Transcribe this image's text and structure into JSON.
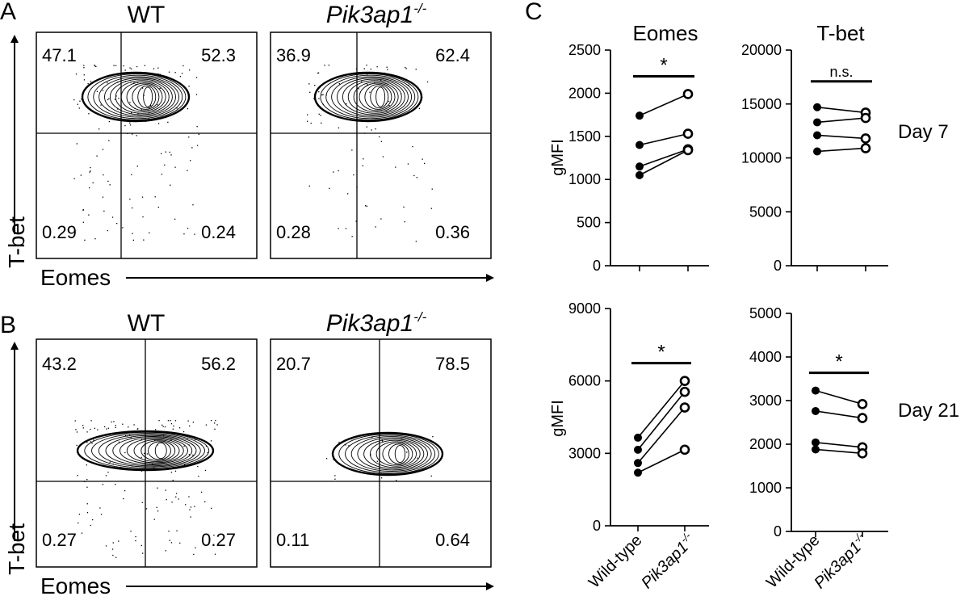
{
  "panel_letters": {
    "a": "A",
    "b": "B",
    "c": "C"
  },
  "flow": {
    "y_axis_label": "T-bet",
    "x_axis_label": "Eomes",
    "rows": [
      {
        "plots": [
          {
            "title": "WT",
            "q_ul": "47.1",
            "q_ur": "52.3",
            "q_ll": "0.29",
            "q_lr": "0.24"
          },
          {
            "title_main": "Pik3ap1",
            "title_sup": "-/-",
            "q_ul": "36.9",
            "q_ur": "62.4",
            "q_ll": "0.28",
            "q_lr": "0.36"
          }
        ]
      },
      {
        "plots": [
          {
            "title": "WT",
            "q_ul": "43.2",
            "q_ur": "56.2",
            "q_ll": "0.27",
            "q_lr": "0.27"
          },
          {
            "title_main": "Pik3ap1",
            "title_sup": "-/-",
            "q_ul": "20.7",
            "q_ur": "78.5",
            "q_ll": "0.11",
            "q_lr": "0.64"
          }
        ]
      }
    ]
  },
  "day_labels": [
    "Day 7",
    "Day 21"
  ],
  "x_categories": [
    "Wild-type",
    "Pik3ap1"
  ],
  "x_cat_sup": "-/-",
  "chart_data": [
    {
      "type": "scatter",
      "title": "Eomes",
      "ylabel": "gMFI",
      "ylim": [
        0,
        2500
      ],
      "yticks": [
        0,
        500,
        1000,
        1500,
        2000,
        2500
      ],
      "categories": [
        "Wild-type",
        "Pik3ap1-/-"
      ],
      "pairs": [
        [
          1740,
          1990
        ],
        [
          1400,
          1530
        ],
        [
          1150,
          1350
        ],
        [
          1050,
          1340
        ]
      ],
      "significance": "*"
    },
    {
      "type": "scatter",
      "title": "T-bet",
      "ylabel": "",
      "ylim": [
        0,
        20000
      ],
      "yticks": [
        0,
        5000,
        10000,
        15000,
        20000
      ],
      "categories": [
        "Wild-type",
        "Pik3ap1-/-"
      ],
      "pairs": [
        [
          14700,
          14200
        ],
        [
          13300,
          13700
        ],
        [
          12100,
          11800
        ],
        [
          10600,
          10900
        ]
      ],
      "significance": "n.s."
    },
    {
      "type": "scatter",
      "title": "",
      "ylabel": "gMFI",
      "ylim": [
        0,
        9000
      ],
      "yticks": [
        0,
        3000,
        6000,
        9000
      ],
      "categories": [
        "Wild-type",
        "Pik3ap1-/-"
      ],
      "pairs": [
        [
          3650,
          6000
        ],
        [
          3150,
          5550
        ],
        [
          2600,
          4900
        ],
        [
          2200,
          3150
        ]
      ],
      "significance": "*"
    },
    {
      "type": "scatter",
      "title": "",
      "ylabel": "",
      "ylim": [
        0,
        5000
      ],
      "yticks": [
        0,
        1000,
        2000,
        3000,
        4000,
        5000
      ],
      "categories": [
        "Wild-type",
        "Pik3ap1-/-"
      ],
      "pairs": [
        [
          3230,
          2920
        ],
        [
          2760,
          2600
        ],
        [
          2040,
          1930
        ],
        [
          1880,
          1790
        ]
      ],
      "significance": "*"
    }
  ]
}
